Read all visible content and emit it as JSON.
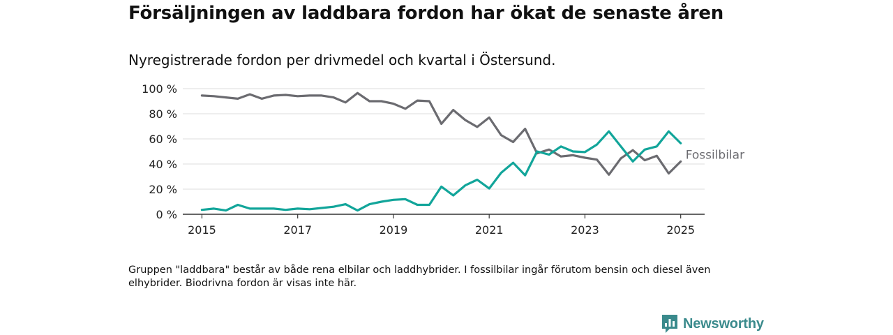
{
  "title": "Försäljningen av laddbara fordon har ökat de senaste åren",
  "subtitle": "Nyregistrerade fordon per drivmedel och kvartal i Östersund.",
  "footnote": "Gruppen \"laddbara\" består av både rena elbilar och laddhybrider. I fossilbilar ingår förutom bensin och diesel även elhybrider. Biodrivna fordon är visas inte här.",
  "brand": {
    "name": "Newsworthy",
    "color": "#3a8a8c"
  },
  "chart_data": {
    "type": "line",
    "title": "",
    "xlabel": "",
    "ylabel": "",
    "x": [
      2015.0,
      2015.25,
      2015.5,
      2015.75,
      2016.0,
      2016.25,
      2016.5,
      2016.75,
      2017.0,
      2017.25,
      2017.5,
      2017.75,
      2018.0,
      2018.25,
      2018.5,
      2018.75,
      2019.0,
      2019.25,
      2019.5,
      2019.75,
      2020.0,
      2020.25,
      2020.5,
      2020.75,
      2021.0,
      2021.25,
      2021.5,
      2021.75,
      2022.0,
      2022.25,
      2022.5,
      2022.75,
      2023.0,
      2023.25,
      2023.5,
      2023.75,
      2024.0,
      2024.25,
      2024.5,
      2024.75,
      2025.0
    ],
    "xlim": [
      2014.6,
      2025.5
    ],
    "ylim": [
      0,
      100
    ],
    "x_ticks": [
      2015,
      2017,
      2019,
      2021,
      2023,
      2025
    ],
    "x_tick_labels": [
      "2015",
      "2017",
      "2019",
      "2021",
      "2023",
      "2025"
    ],
    "y_ticks": [
      0,
      20,
      40,
      60,
      80,
      100
    ],
    "y_tick_labels": [
      "0 %",
      "20 %",
      "40 %",
      "60 %",
      "80 %",
      "100 %"
    ],
    "grid": true,
    "series": [
      {
        "name": "Fossilbilar",
        "color": "#6b6b70",
        "label_color": "#6b6b70",
        "values": [
          94.5,
          94,
          93,
          92,
          95.5,
          92,
          94.5,
          95,
          94,
          94.5,
          94.5,
          93,
          89,
          96.5,
          90,
          90,
          88,
          84,
          90.5,
          90,
          72,
          83,
          75,
          69.5,
          77,
          63,
          57.5,
          68,
          48.5,
          51.5,
          46,
          47,
          45,
          43.5,
          31.5,
          44.5,
          51,
          43,
          46.5,
          32.5,
          42
        ]
      },
      {
        "name": "",
        "color": "#12a59a",
        "values": [
          3.5,
          4.5,
          3,
          7.5,
          4.5,
          4.5,
          4.5,
          3.5,
          4.5,
          4,
          5,
          6,
          8,
          3,
          8,
          10,
          11.5,
          12,
          7.5,
          7.5,
          22,
          15,
          23,
          27.5,
          20.5,
          33,
          41,
          31,
          50,
          47.5,
          54,
          50,
          49.5,
          55.5,
          66,
          54,
          42,
          51.5,
          54,
          66,
          56.5
        ]
      }
    ]
  }
}
